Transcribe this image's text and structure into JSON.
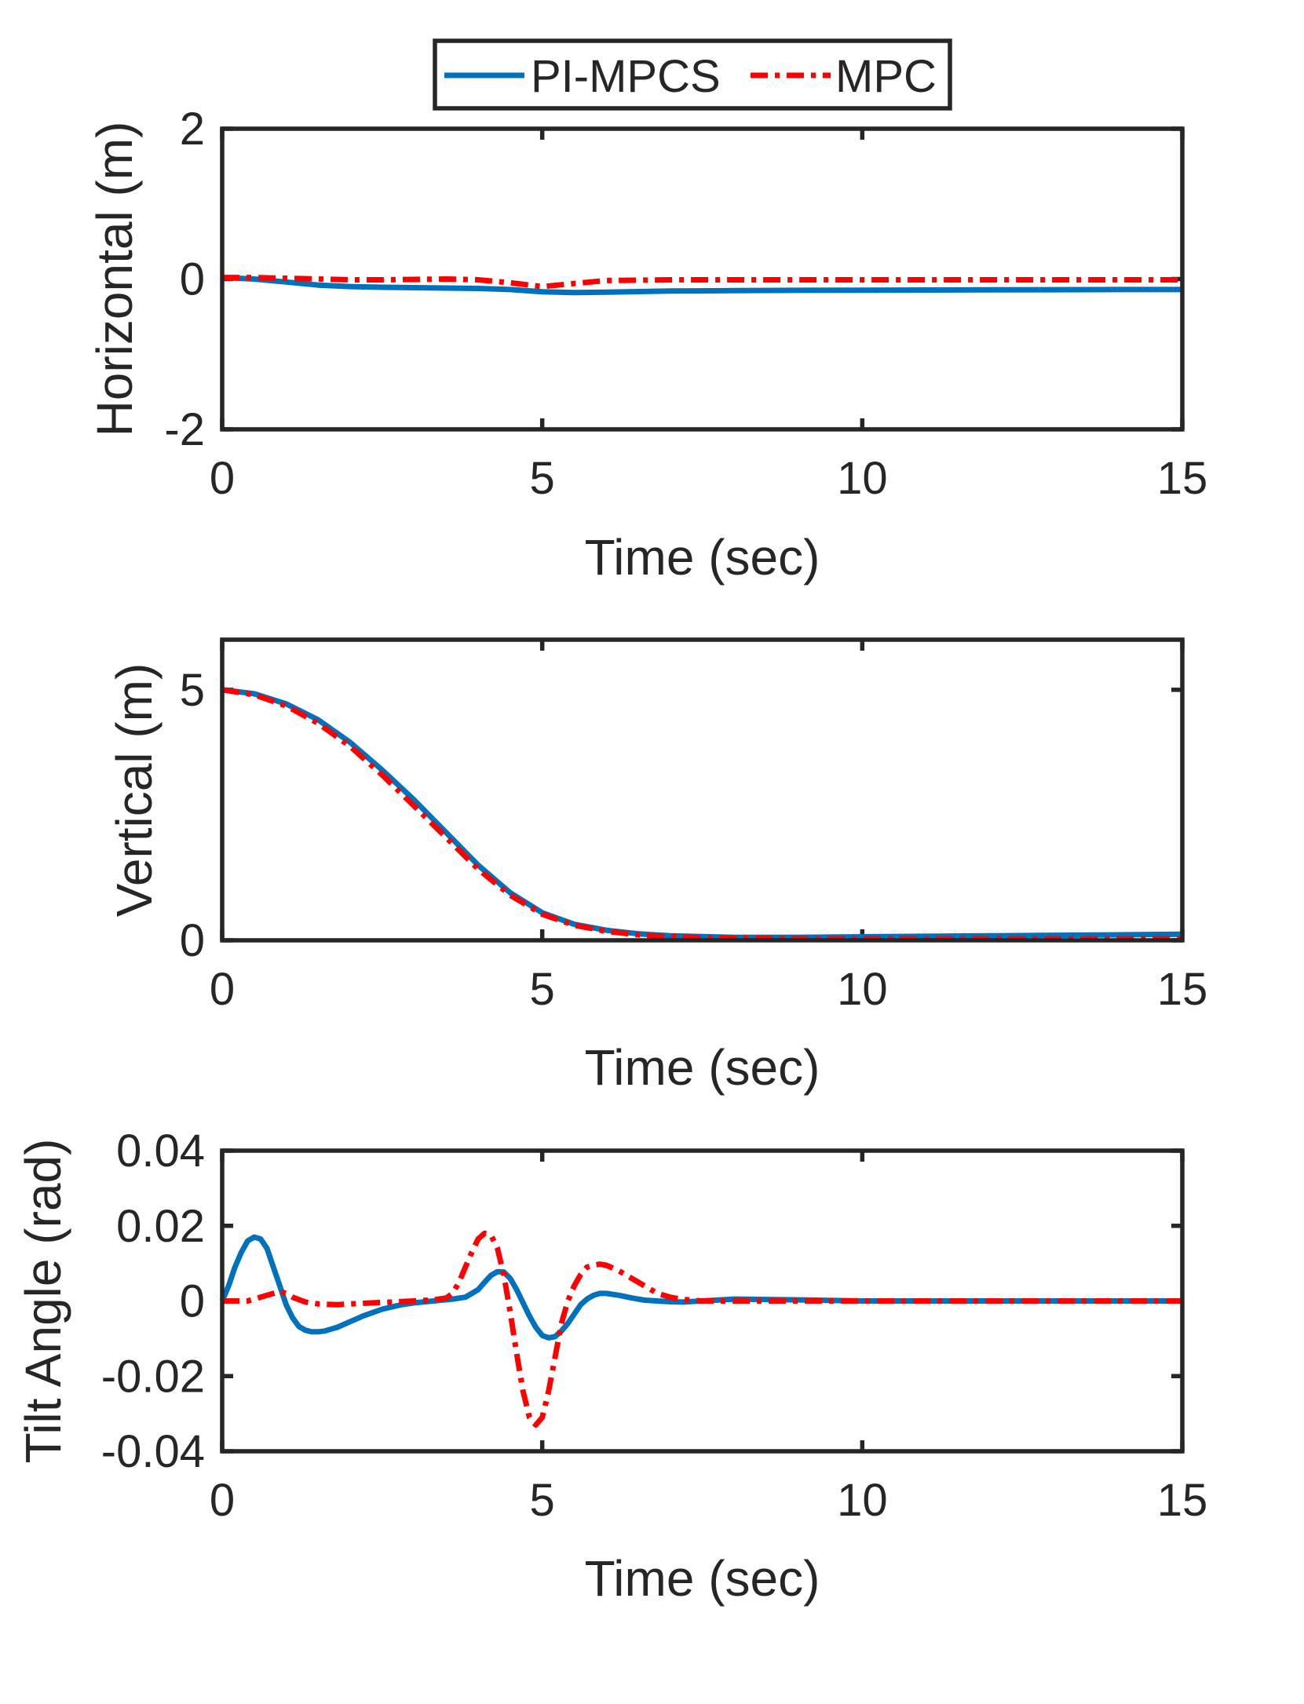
{
  "legend": {
    "entries": [
      {
        "name": "PI-MPCS",
        "color": "#0072bd",
        "style": "solid"
      },
      {
        "name": "MPC",
        "color": "#ff0000",
        "style": "dashdot"
      }
    ]
  },
  "chart_data": [
    {
      "type": "line",
      "xlabel": "Time (sec)",
      "ylabel": "Horizontal (m)",
      "xlim": [
        0,
        15
      ],
      "ylim": [
        -2,
        2
      ],
      "xticks": [
        0,
        5,
        10,
        15
      ],
      "yticks": [
        -2,
        0,
        2
      ],
      "xticklabels": [
        "0",
        "5",
        "10",
        "15"
      ],
      "yticklabels": [
        "-2",
        "0",
        "2"
      ],
      "series": [
        {
          "name": "PI-MPCS",
          "color": "#0072bd",
          "style": "solid",
          "x": [
            0,
            0.5,
            1,
            1.5,
            2,
            2.5,
            3,
            3.5,
            4,
            4.5,
            5,
            5.5,
            6,
            7,
            8,
            9,
            10,
            11,
            12,
            13,
            14,
            15
          ],
          "y": [
            0.02,
            0.0,
            -0.04,
            -0.08,
            -0.1,
            -0.11,
            -0.115,
            -0.12,
            -0.125,
            -0.14,
            -0.17,
            -0.18,
            -0.175,
            -0.16,
            -0.155,
            -0.15,
            -0.148,
            -0.146,
            -0.144,
            -0.142,
            -0.14,
            -0.14
          ]
        },
        {
          "name": "MPC",
          "color": "#ff0000",
          "style": "dashdot",
          "x": [
            0,
            0.5,
            1,
            1.5,
            2,
            2.5,
            3,
            3.5,
            4,
            4.5,
            5,
            5.5,
            6,
            7,
            8,
            9,
            10,
            11,
            12,
            13,
            14,
            15
          ],
          "y": [
            0.02,
            0.02,
            0.01,
            0.0,
            -0.01,
            -0.01,
            -0.005,
            0.0,
            -0.01,
            -0.05,
            -0.1,
            -0.06,
            -0.02,
            -0.01,
            -0.01,
            -0.01,
            -0.01,
            -0.01,
            -0.01,
            -0.01,
            -0.01,
            -0.01
          ]
        }
      ]
    },
    {
      "type": "line",
      "xlabel": "Time (sec)",
      "ylabel": "Vertical (m)",
      "xlim": [
        0,
        15
      ],
      "ylim": [
        0,
        6
      ],
      "xticks": [
        0,
        5,
        10,
        15
      ],
      "yticks": [
        0,
        5
      ],
      "xticklabels": [
        "0",
        "5",
        "10",
        "15"
      ],
      "yticklabels": [
        "0",
        "5"
      ],
      "series": [
        {
          "name": "PI-MPCS",
          "color": "#0072bd",
          "style": "solid",
          "x": [
            0,
            0.5,
            1,
            1.5,
            2,
            2.5,
            3,
            3.5,
            4,
            4.5,
            5,
            5.5,
            6,
            6.5,
            7,
            8,
            9,
            10,
            11,
            12,
            13,
            14,
            15
          ],
          "y": [
            5.0,
            4.92,
            4.72,
            4.4,
            3.95,
            3.4,
            2.8,
            2.15,
            1.5,
            0.95,
            0.55,
            0.32,
            0.2,
            0.13,
            0.09,
            0.06,
            0.06,
            0.07,
            0.08,
            0.09,
            0.1,
            0.11,
            0.12
          ]
        },
        {
          "name": "MPC",
          "color": "#ff0000",
          "style": "dashdot",
          "x": [
            0,
            0.5,
            1,
            1.5,
            2,
            2.5,
            3,
            3.5,
            4,
            4.5,
            5,
            5.5,
            6,
            6.5,
            7,
            8,
            9,
            10,
            11,
            12,
            13,
            14,
            15
          ],
          "y": [
            5.0,
            4.9,
            4.68,
            4.33,
            3.87,
            3.3,
            2.68,
            2.05,
            1.42,
            0.9,
            0.52,
            0.3,
            0.18,
            0.11,
            0.07,
            0.04,
            0.03,
            0.03,
            0.03,
            0.03,
            0.03,
            0.03,
            0.03
          ]
        }
      ]
    },
    {
      "type": "line",
      "xlabel": "Time (sec)",
      "ylabel": "Tilt Angle (rad)",
      "xlim": [
        0,
        15
      ],
      "ylim": [
        -0.04,
        0.04
      ],
      "xticks": [
        0,
        5,
        10,
        15
      ],
      "yticks": [
        -0.04,
        -0.02,
        0,
        0.02,
        0.04
      ],
      "xticklabels": [
        "0",
        "5",
        "10",
        "15"
      ],
      "yticklabels": [
        "-0.04",
        "-0.02",
        "0",
        "0.02",
        "0.04"
      ],
      "series": [
        {
          "name": "PI-MPCS",
          "color": "#0072bd",
          "style": "solid",
          "x": [
            0,
            0.1,
            0.2,
            0.3,
            0.4,
            0.5,
            0.6,
            0.7,
            0.8,
            0.9,
            1.0,
            1.1,
            1.2,
            1.3,
            1.4,
            1.5,
            1.6,
            1.8,
            2.0,
            2.2,
            2.5,
            2.8,
            3.0,
            3.3,
            3.6,
            3.8,
            4.0,
            4.1,
            4.2,
            4.3,
            4.4,
            4.5,
            4.6,
            4.7,
            4.8,
            4.9,
            5.0,
            5.1,
            5.2,
            5.3,
            5.4,
            5.5,
            5.6,
            5.7,
            5.8,
            5.9,
            6.0,
            6.2,
            6.4,
            6.6,
            6.8,
            7.0,
            7.2,
            7.5,
            8.0,
            9.0,
            10,
            11,
            12,
            13,
            14,
            15
          ],
          "y": [
            0.0,
            0.004,
            0.009,
            0.013,
            0.016,
            0.017,
            0.0165,
            0.014,
            0.009,
            0.004,
            -0.001,
            -0.0045,
            -0.0068,
            -0.0078,
            -0.0082,
            -0.0082,
            -0.008,
            -0.007,
            -0.0055,
            -0.004,
            -0.0022,
            -0.001,
            -0.0005,
            0.0,
            0.0005,
            0.001,
            0.003,
            0.005,
            0.0068,
            0.0078,
            0.0077,
            0.006,
            0.003,
            -0.0005,
            -0.004,
            -0.007,
            -0.0092,
            -0.0098,
            -0.0095,
            -0.008,
            -0.006,
            -0.0035,
            -0.001,
            0.0005,
            0.0015,
            0.002,
            0.002,
            0.0015,
            0.0008,
            0.0002,
            0.0,
            -0.0002,
            -0.0003,
            0.0,
            0.0005,
            0.0003,
            0.0,
            0.0,
            0.0,
            0.0,
            0.0,
            0.0
          ]
        },
        {
          "name": "MPC",
          "color": "#ff0000",
          "style": "dashdot",
          "x": [
            0,
            0.2,
            0.4,
            0.6,
            0.8,
            0.9,
            1.0,
            1.1,
            1.3,
            1.5,
            1.8,
            2.0,
            2.5,
            3.0,
            3.3,
            3.5,
            3.6,
            3.7,
            3.8,
            3.9,
            4.0,
            4.1,
            4.2,
            4.3,
            4.4,
            4.5,
            4.6,
            4.7,
            4.8,
            4.9,
            5.0,
            5.1,
            5.2,
            5.3,
            5.4,
            5.5,
            5.6,
            5.7,
            5.8,
            5.9,
            6.0,
            6.2,
            6.4,
            6.6,
            6.8,
            7.0,
            7.2,
            7.5,
            8.0,
            9.0,
            10,
            11,
            12,
            13,
            14,
            15
          ],
          "y": [
            0.0,
            0.0,
            0.0,
            0.001,
            0.002,
            0.0025,
            0.002,
            0.001,
            -0.0003,
            -0.0008,
            -0.001,
            -0.0008,
            -0.0004,
            0.0,
            0.0003,
            0.0008,
            0.002,
            0.005,
            0.009,
            0.013,
            0.0165,
            0.018,
            0.0175,
            0.014,
            0.007,
            -0.003,
            -0.014,
            -0.024,
            -0.031,
            -0.033,
            -0.031,
            -0.024,
            -0.015,
            -0.006,
            0.0,
            0.004,
            0.007,
            0.009,
            0.0095,
            0.0098,
            0.0095,
            0.008,
            0.006,
            0.004,
            0.002,
            0.001,
            0.0004,
            0.0,
            0.0,
            0.0,
            0.0,
            0.0,
            0.0,
            0.0,
            0.0,
            0.0
          ]
        }
      ]
    }
  ]
}
